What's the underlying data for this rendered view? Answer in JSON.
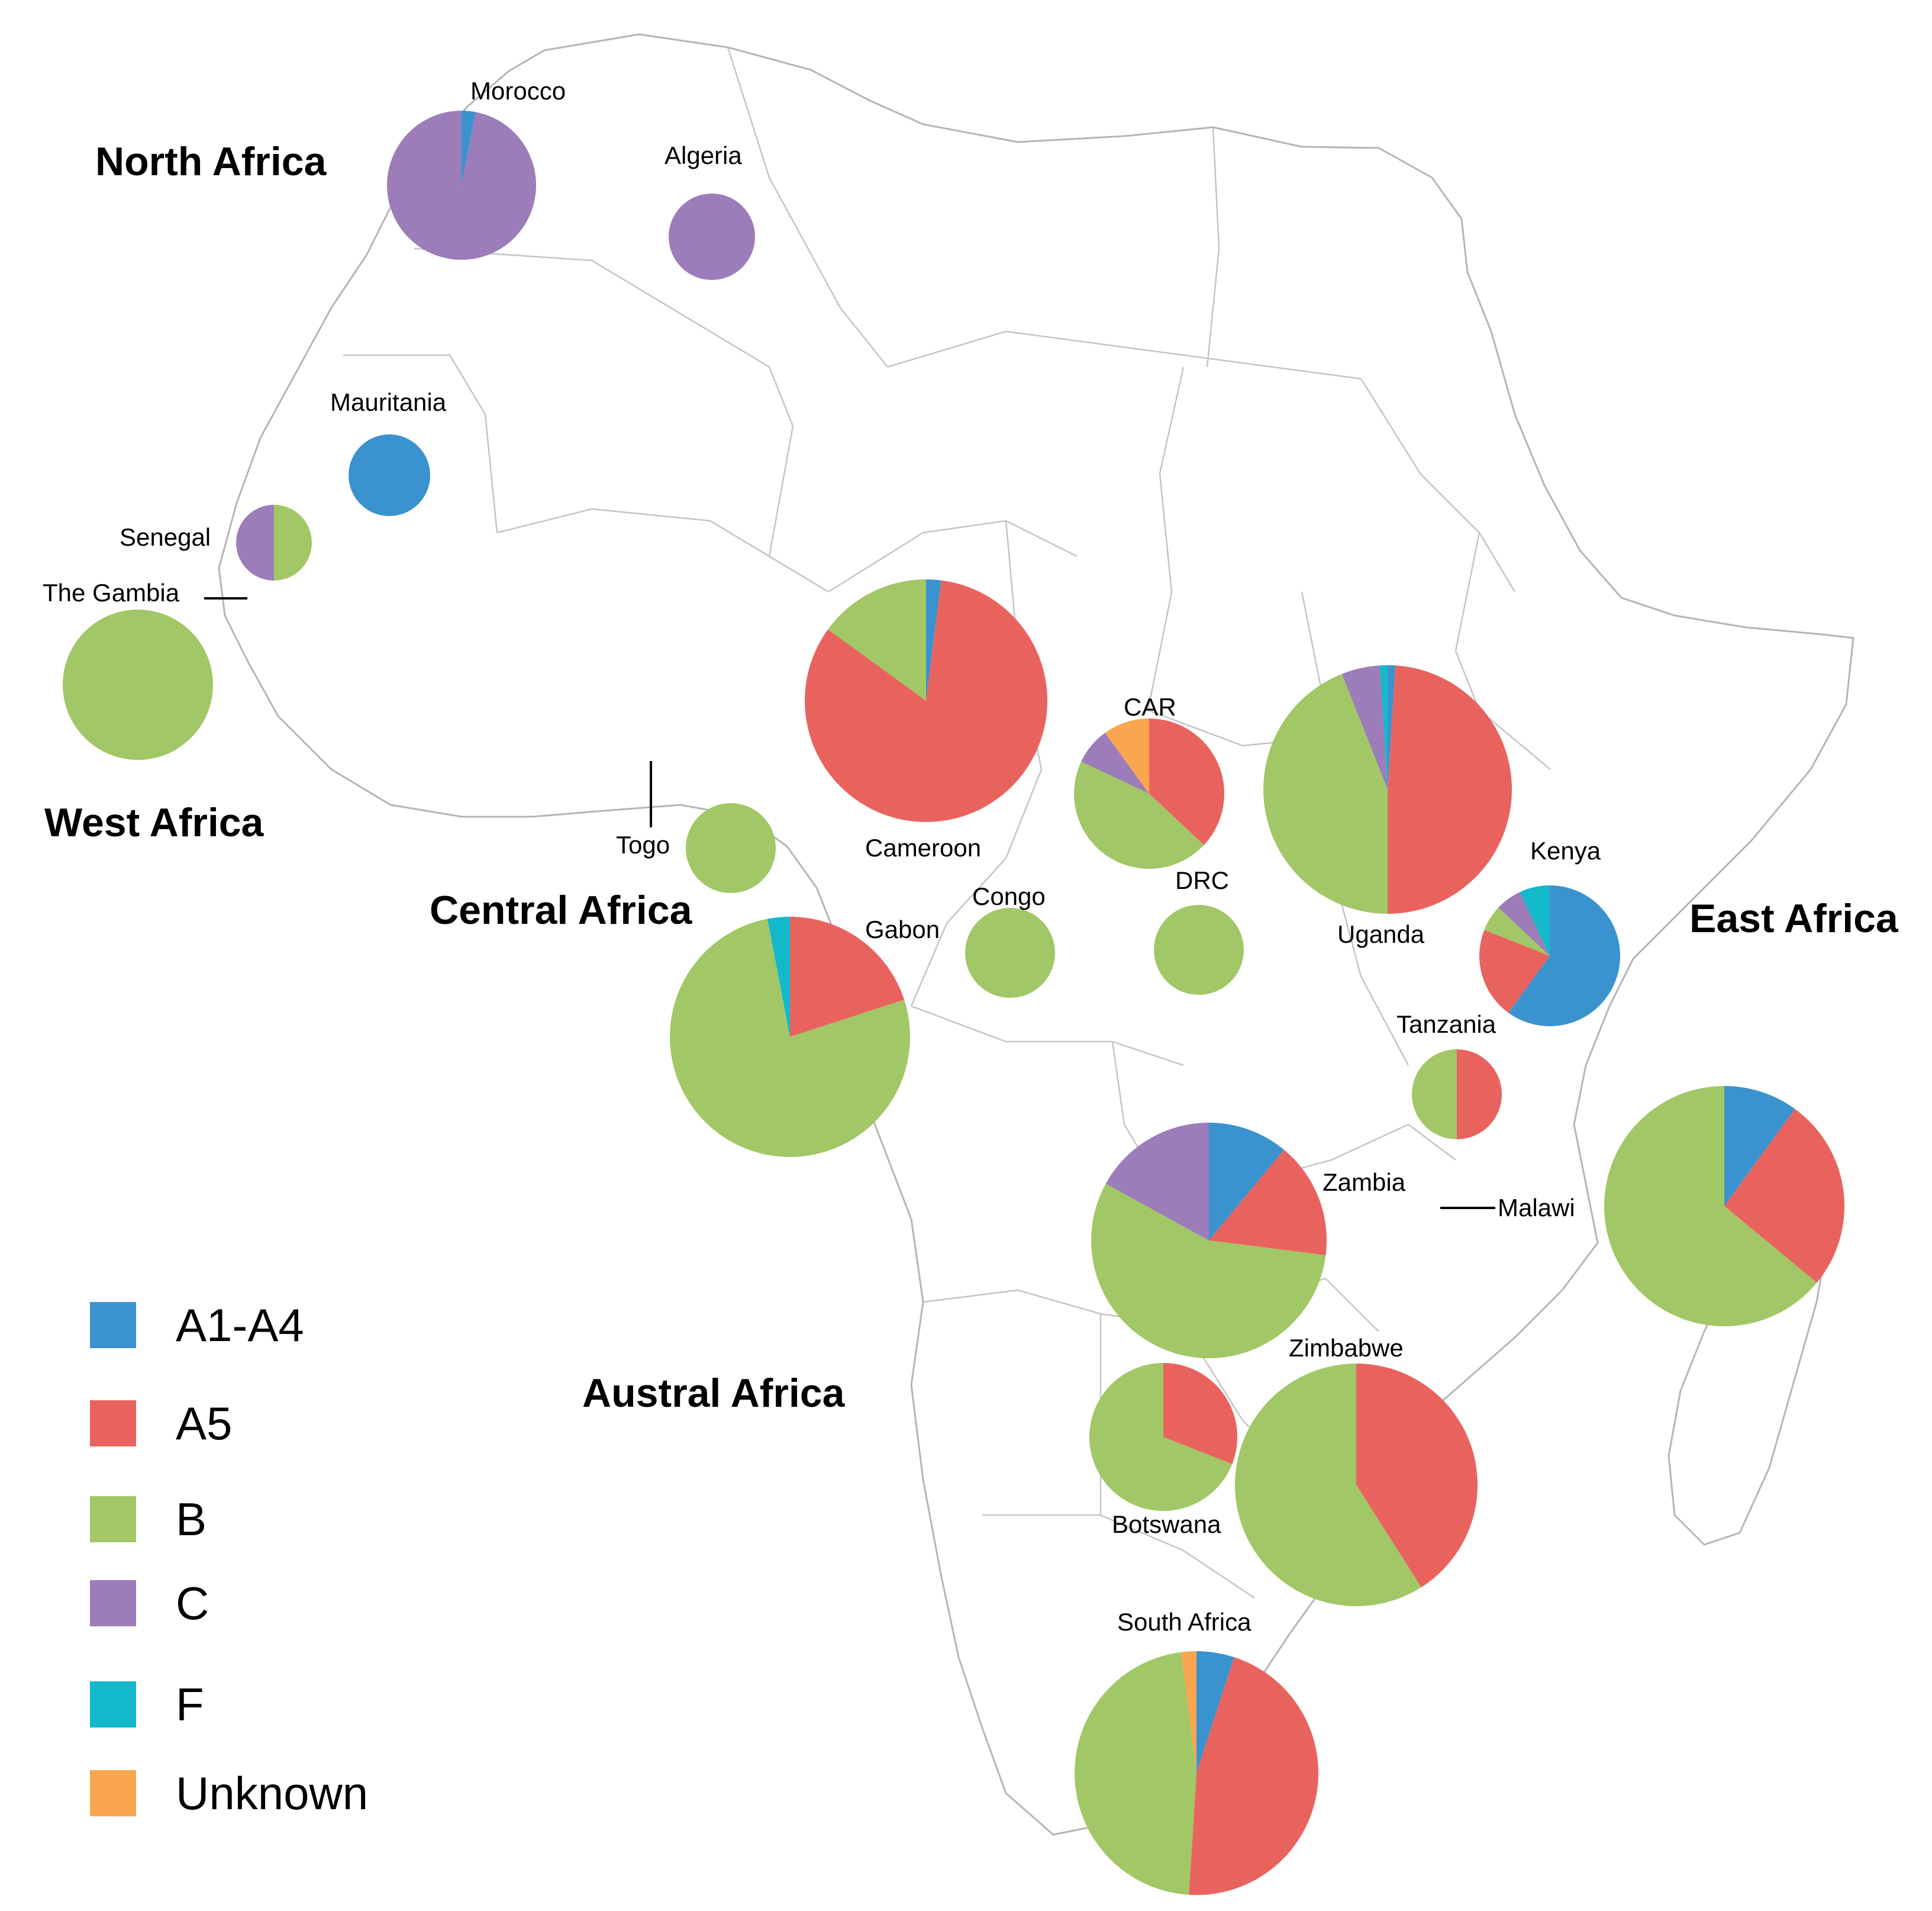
{
  "legend": [
    {
      "key": "a1a4",
      "label": "A1-A4",
      "color": "#3a93cf"
    },
    {
      "key": "a5",
      "label": "A5",
      "color": "#e9635e"
    },
    {
      "key": "b",
      "label": "B",
      "color": "#a2c766"
    },
    {
      "key": "c",
      "label": "C",
      "color": "#9c7cb9"
    },
    {
      "key": "f",
      "label": "F",
      "color": "#14b8cb"
    },
    {
      "key": "unknown",
      "label": "Unknown",
      "color": "#faa64f"
    }
  ],
  "regions": {
    "north": "North Africa",
    "west": "West Africa",
    "central": "Central Africa",
    "east": "East Africa",
    "austral": "Austral Africa"
  },
  "countries": [
    {
      "id": "morocco",
      "label": "Morocco",
      "shares": {
        "a1a4": 0.03,
        "c": 0.97
      }
    },
    {
      "id": "algeria",
      "label": "Algeria",
      "shares": {
        "c": 1
      }
    },
    {
      "id": "mauritania",
      "label": "Mauritania",
      "shares": {
        "a1a4": 1
      }
    },
    {
      "id": "senegal",
      "label": "Senegal",
      "shares": {
        "b": 0.5,
        "c": 0.5
      }
    },
    {
      "id": "the-gambia",
      "label": "The Gambia",
      "shares": {
        "b": 1
      }
    },
    {
      "id": "togo",
      "label": "Togo",
      "shares": {
        "b": 1
      }
    },
    {
      "id": "cameroon",
      "label": "Cameroon",
      "shares": {
        "a1a4": 0.02,
        "a5": 0.83,
        "b": 0.15
      }
    },
    {
      "id": "car",
      "label": "CAR",
      "shares": {
        "a5": 0.37,
        "b": 0.45,
        "c": 0.08,
        "unknown": 0.1
      }
    },
    {
      "id": "uganda",
      "label": "Uganda",
      "shares": {
        "a1a4": 0.01,
        "a5": 0.49,
        "b": 0.44,
        "c": 0.05,
        "f": 0.01
      }
    },
    {
      "id": "kenya",
      "label": "Kenya",
      "shares": {
        "a1a4": 0.6,
        "a5": 0.21,
        "b": 0.06,
        "c": 0.06,
        "f": 0.07
      }
    },
    {
      "id": "gabon",
      "label": "Gabon",
      "shares": {
        "a5": 0.2,
        "b": 0.77,
        "f": 0.03
      }
    },
    {
      "id": "congo",
      "label": "Congo",
      "shares": {
        "b": 1
      }
    },
    {
      "id": "drc",
      "label": "DRC",
      "shares": {
        "b": 1
      }
    },
    {
      "id": "tanzania",
      "label": "Tanzania",
      "shares": {
        "a5": 0.5,
        "b": 0.5
      }
    },
    {
      "id": "zambia",
      "label": "Zambia",
      "shares": {
        "a1a4": 0.11,
        "a5": 0.16,
        "b": 0.56,
        "c": 0.17
      }
    },
    {
      "id": "malawi",
      "label": "Malawi",
      "shares": {
        "a1a4": 0.1,
        "a5": 0.26,
        "b": 0.64
      }
    },
    {
      "id": "botswana",
      "label": "Botswana",
      "shares": {
        "a5": 0.31,
        "b": 0.69
      }
    },
    {
      "id": "zimbabwe",
      "label": "Zimbabwe",
      "shares": {
        "a5": 0.41,
        "b": 0.59
      }
    },
    {
      "id": "south-africa",
      "label": "South Africa",
      "shares": {
        "a1a4": 0.05,
        "a5": 0.46,
        "b": 0.47,
        "unknown": 0.02
      }
    }
  ]
}
